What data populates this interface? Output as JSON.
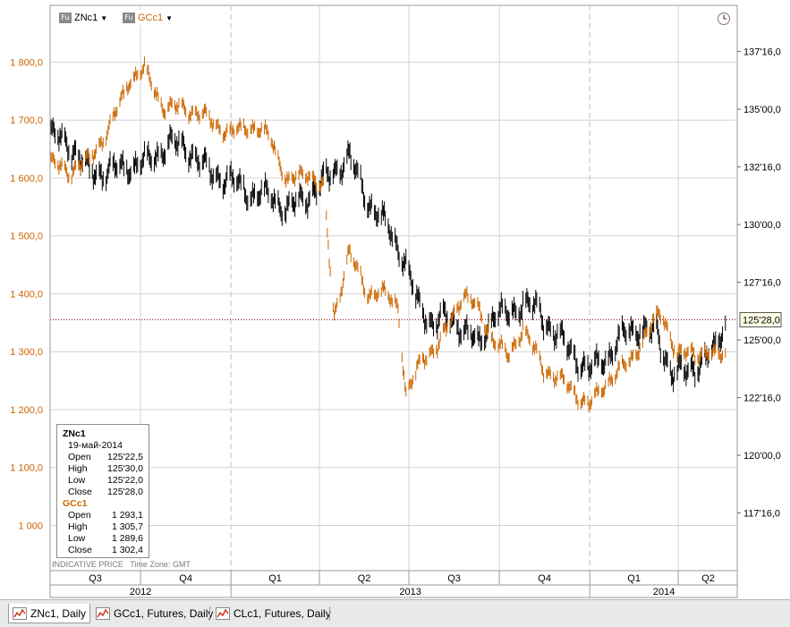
{
  "legend": {
    "symbols": [
      {
        "name": "ZNc1",
        "icon": "futures-icon",
        "icon_text": "Fu",
        "color": "#000000"
      },
      {
        "name": "GCc1",
        "icon": "futures-icon",
        "icon_text": "Fu",
        "color": "#cc6600"
      }
    ]
  },
  "info_box": {
    "primary": {
      "symbol": "ZNc1",
      "date": "19-май-2014",
      "rows": [
        {
          "label": "Open",
          "value": "125'22,5"
        },
        {
          "label": "High",
          "value": "125'30,0"
        },
        {
          "label": "Low",
          "value": "125'22,0"
        },
        {
          "label": "Close",
          "value": "125'28,0"
        }
      ]
    },
    "secondary": {
      "symbol": "GCc1",
      "rows": [
        {
          "label": "Open",
          "value": "1 293,1"
        },
        {
          "label": "High",
          "value": "1 305,7"
        },
        {
          "label": "Low",
          "value": "1 289,6"
        },
        {
          "label": "Close",
          "value": "1 302,4"
        }
      ]
    }
  },
  "footer_note": {
    "price": "INDICATIVE PRICE",
    "timezone": "Time Zone: GMT"
  },
  "tabs": [
    {
      "label": "ZNc1, Daily",
      "active": true,
      "icon": "line-chart-icon"
    },
    {
      "label": "GCc1, Futures, Daily",
      "active": false,
      "icon": "line-chart-icon"
    },
    {
      "label": "CLc1, Futures, Daily",
      "active": false,
      "icon": "line-chart-icon"
    }
  ],
  "colors": {
    "zn": "#000000",
    "gc": "#cc6600",
    "grid": "#d4d4d4",
    "ref_line": "#aa0000"
  },
  "chart_data": {
    "type": "bar",
    "x_type": "date",
    "x_range": [
      "2012-07-01",
      "2014-05-31"
    ],
    "quarters": [
      {
        "label": "Q3",
        "start": "2012-07-01"
      },
      {
        "label": "Q4",
        "start": "2012-10-01"
      },
      {
        "label": "Q1",
        "start": "2013-01-01"
      },
      {
        "label": "Q2",
        "start": "2013-04-01"
      },
      {
        "label": "Q3",
        "start": "2013-07-01"
      },
      {
        "label": "Q4",
        "start": "2013-10-01"
      },
      {
        "label": "Q1",
        "start": "2014-01-01"
      },
      {
        "label": "Q2",
        "start": "2014-04-01"
      }
    ],
    "years": [
      {
        "label": "2012",
        "start": "2012-07-01",
        "end": "2012-12-31"
      },
      {
        "label": "2013",
        "start": "2013-01-01",
        "end": "2013-12-31"
      },
      {
        "label": "2014",
        "start": "2014-01-01",
        "end": "2014-05-31"
      }
    ],
    "left_axis": {
      "series": "GCc1",
      "ylim": [
        922,
        1898
      ],
      "ticks": [
        1000,
        1100,
        1200,
        1300,
        1400,
        1500,
        1600,
        1700,
        1800
      ],
      "tick_labels": [
        "1 000",
        "1 100,0",
        "1 200,0",
        "1 300,0",
        "1 400,0",
        "1 500,0",
        "1 600,0",
        "1 700,0",
        "1 800,0"
      ]
    },
    "right_axis": {
      "series": "ZNc1",
      "ylim": [
        115.0,
        139.5
      ],
      "ticks": [
        117.5,
        120,
        122.5,
        125,
        127.5,
        130,
        132.5,
        135,
        137.5
      ],
      "tick_labels": [
        "117'16,0",
        "120'00,0",
        "122'16,0",
        "125'00,0",
        "127'16,0",
        "130'00,0",
        "132'16,0",
        "135'00,0",
        "137'16,0"
      ]
    },
    "reference_line": {
      "series": "ZNc1",
      "value": 125.875,
      "label": "125'28,0"
    },
    "series": [
      {
        "name": "ZNc1",
        "axis": "right",
        "points": [
          [
            "2012-07-02",
            133.8
          ],
          [
            "2012-07-20",
            133.5
          ],
          [
            "2012-08-10",
            132.2
          ],
          [
            "2012-09-01",
            132.3
          ],
          [
            "2012-09-20",
            132.5
          ],
          [
            "2012-10-10",
            132.7
          ],
          [
            "2012-10-30",
            133.5
          ],
          [
            "2012-11-20",
            133.2
          ],
          [
            "2012-12-10",
            132.2
          ],
          [
            "2012-12-31",
            131.9
          ],
          [
            "2013-01-20",
            131.3
          ],
          [
            "2013-02-10",
            131.2
          ],
          [
            "2013-02-28",
            130.6
          ],
          [
            "2013-03-20",
            131.2
          ],
          [
            "2013-04-10",
            132.0
          ],
          [
            "2013-05-01",
            132.9
          ],
          [
            "2013-05-20",
            131.0
          ],
          [
            "2013-06-10",
            129.8
          ],
          [
            "2013-06-25",
            128.6
          ],
          [
            "2013-07-10",
            126.5
          ],
          [
            "2013-07-25",
            125.7
          ],
          [
            "2013-08-10",
            125.9
          ],
          [
            "2013-08-25",
            125.5
          ],
          [
            "2013-09-10",
            124.7
          ],
          [
            "2013-09-25",
            126.1
          ],
          [
            "2013-10-10",
            126.0
          ],
          [
            "2013-10-25",
            126.6
          ],
          [
            "2013-11-10",
            126.2
          ],
          [
            "2013-11-20",
            125.6
          ],
          [
            "2013-12-10",
            124.6
          ],
          [
            "2013-12-31",
            123.6
          ],
          [
            "2014-01-20",
            124.3
          ],
          [
            "2014-02-05",
            125.2
          ],
          [
            "2014-02-20",
            125.5
          ],
          [
            "2014-03-10",
            125.2
          ],
          [
            "2014-03-25",
            123.6
          ],
          [
            "2014-04-10",
            123.5
          ],
          [
            "2014-04-25",
            124.1
          ],
          [
            "2014-05-10",
            124.5
          ],
          [
            "2014-05-19",
            125.9
          ]
        ]
      },
      {
        "name": "GCc1",
        "axis": "left",
        "points": [
          [
            "2012-07-02",
            1625
          ],
          [
            "2012-07-20",
            1610
          ],
          [
            "2012-08-10",
            1630
          ],
          [
            "2012-09-01",
            1690
          ],
          [
            "2012-09-20",
            1770
          ],
          [
            "2012-10-05",
            1785
          ],
          [
            "2012-10-25",
            1720
          ],
          [
            "2012-11-15",
            1720
          ],
          [
            "2012-12-05",
            1705
          ],
          [
            "2012-12-31",
            1675
          ],
          [
            "2013-01-20",
            1690
          ],
          [
            "2013-02-10",
            1670
          ],
          [
            "2013-02-28",
            1590
          ],
          [
            "2013-03-20",
            1610
          ],
          [
            "2013-04-05",
            1580
          ],
          [
            "2013-04-16",
            1360
          ],
          [
            "2013-05-01",
            1470
          ],
          [
            "2013-05-20",
            1400
          ],
          [
            "2013-06-05",
            1400
          ],
          [
            "2013-06-20",
            1380
          ],
          [
            "2013-06-28",
            1220
          ],
          [
            "2013-07-15",
            1290
          ],
          [
            "2013-08-01",
            1310
          ],
          [
            "2013-08-25",
            1400
          ],
          [
            "2013-09-10",
            1370
          ],
          [
            "2013-09-25",
            1320
          ],
          [
            "2013-10-10",
            1290
          ],
          [
            "2013-10-25",
            1340
          ],
          [
            "2013-11-15",
            1270
          ],
          [
            "2013-12-10",
            1240
          ],
          [
            "2013-12-31",
            1205
          ],
          [
            "2014-01-20",
            1250
          ],
          [
            "2014-02-10",
            1280
          ],
          [
            "2014-02-28",
            1330
          ],
          [
            "2014-03-15",
            1370
          ],
          [
            "2014-03-31",
            1290
          ],
          [
            "2014-04-15",
            1300
          ],
          [
            "2014-04-30",
            1295
          ],
          [
            "2014-05-10",
            1290
          ],
          [
            "2014-05-19",
            1302.4
          ]
        ]
      }
    ]
  }
}
